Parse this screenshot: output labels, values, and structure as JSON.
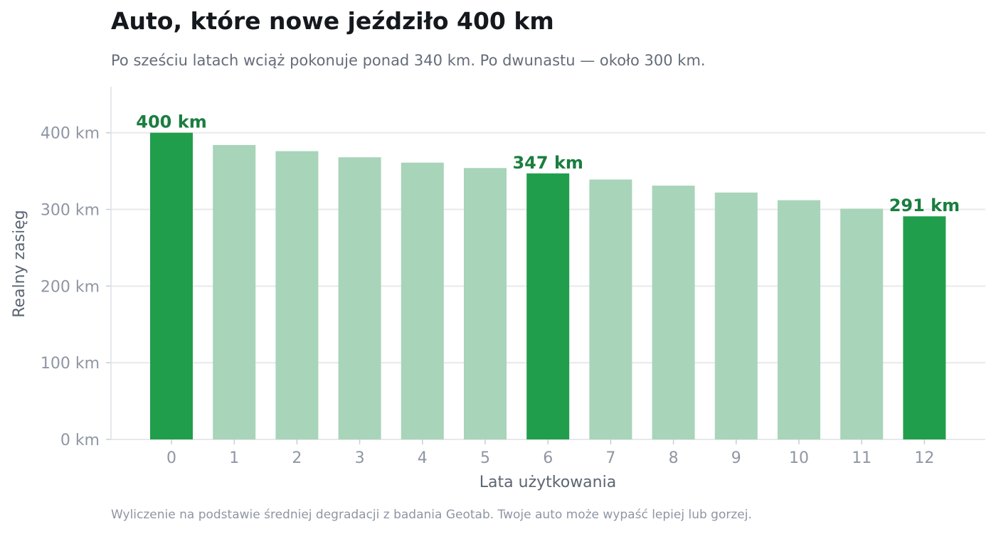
{
  "title": "Auto, które nowe jeździło 400 km",
  "subtitle": "Po sześciu latach wciąż pokonuje ponad 340 km. Po dwunastu — około 300 km.",
  "footer": "Wyliczenie na podstawie średniej degradacji z badania Geotab. Twoje auto może wypaść lepiej lub gorzej.",
  "colors": {
    "highlight": "#219e4c",
    "muted": "#a8d4b9",
    "label": "#1a7e3f",
    "grid": "#e8e9ec",
    "tick": "#8e96a3",
    "axis_title": "#5c6573"
  },
  "chart_data": {
    "type": "bar",
    "xlabel": "Lata użytkowania",
    "ylabel": "Realny zasięg",
    "ylim": [
      0,
      460
    ],
    "yticks": [
      0,
      100,
      200,
      300,
      400
    ],
    "yticklabels": [
      "0 km",
      "100 km",
      "200 km",
      "300 km",
      "400 km"
    ],
    "grid": true,
    "categories": [
      "0",
      "1",
      "2",
      "3",
      "4",
      "5",
      "6",
      "7",
      "8",
      "9",
      "10",
      "11",
      "12"
    ],
    "values": [
      400,
      384,
      376,
      368,
      361,
      354,
      347,
      339,
      331,
      322,
      312,
      301,
      291
    ],
    "highlighted": [
      "0",
      "6",
      "12"
    ],
    "annotations": [
      {
        "category": "0",
        "text": "400 km"
      },
      {
        "category": "6",
        "text": "347 km"
      },
      {
        "category": "12",
        "text": "291 km"
      }
    ]
  }
}
